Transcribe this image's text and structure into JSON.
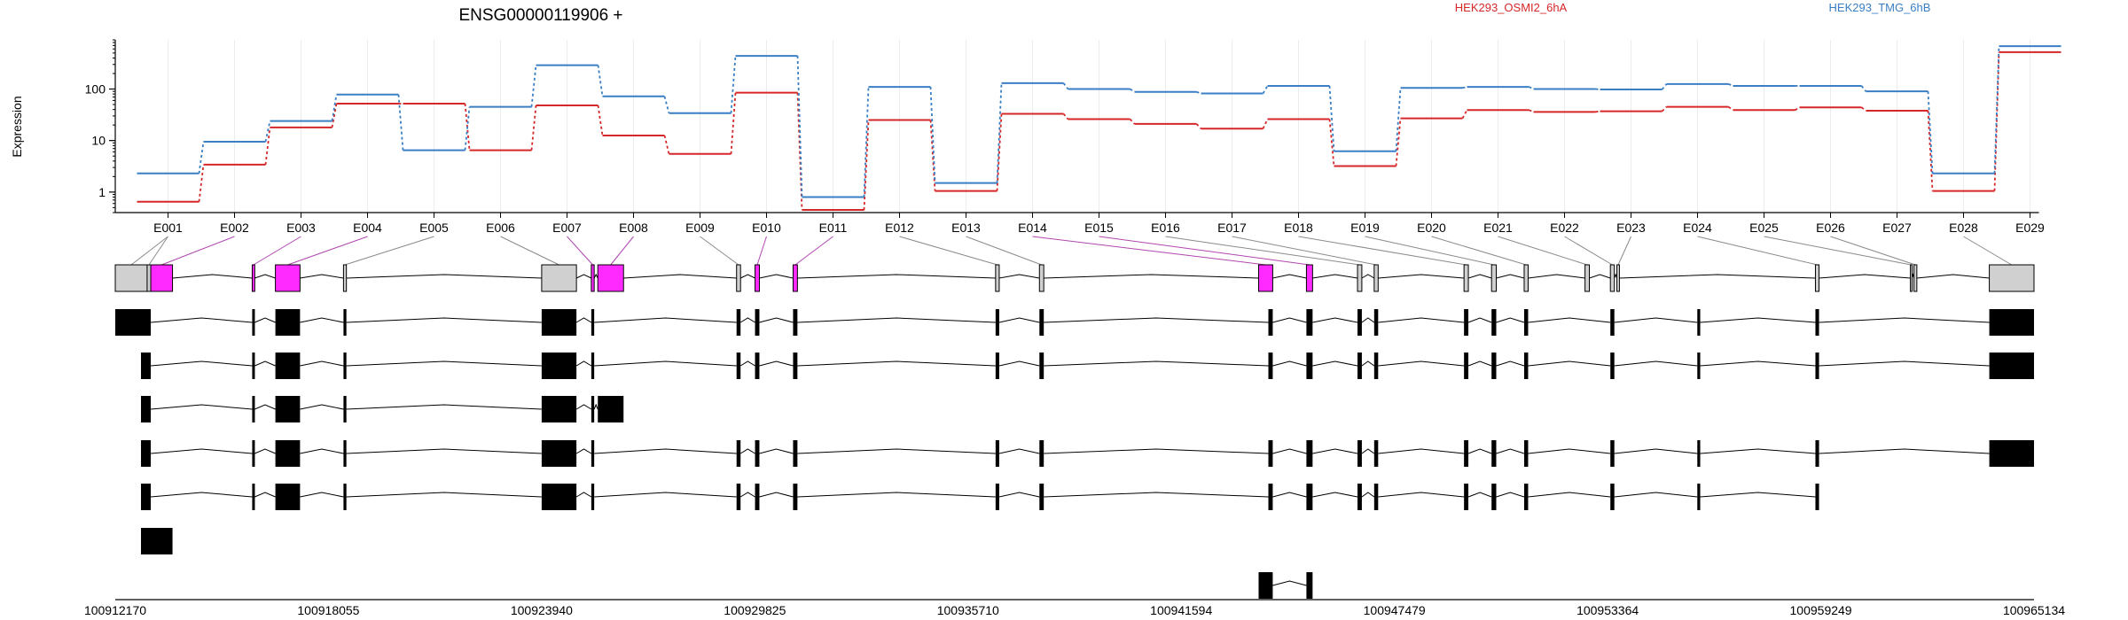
{
  "chart_data": {
    "type": "line",
    "title": "ENSG00000119906 +",
    "ylabel": "Expression",
    "y_scale": "log",
    "yticks": [
      1,
      10,
      100
    ],
    "ylim": [
      0.4,
      900
    ],
    "grid": "vertical, light",
    "legend_position": "top-right",
    "categories": [
      "E001",
      "E002",
      "E003",
      "E004",
      "E005",
      "E006",
      "E007",
      "E008",
      "E009",
      "E010",
      "E011",
      "E012",
      "E013",
      "E014",
      "E015",
      "E016",
      "E017",
      "E018",
      "E019",
      "E020",
      "E021",
      "E022",
      "E023",
      "E024",
      "E025",
      "E026",
      "E027",
      "E028",
      "E029"
    ],
    "series": [
      {
        "name": "HEK293_OSMI2_6hA",
        "color": "#d62728",
        "values": [
          0.65,
          3.4,
          18,
          52,
          52,
          6.5,
          48,
          12.5,
          5.5,
          85,
          0.45,
          25,
          1.05,
          33,
          26,
          21,
          17,
          26,
          3.2,
          27,
          39,
          36,
          37,
          45,
          39,
          44,
          38,
          1.05,
          520
        ]
      },
      {
        "name": "HEK293_TMG_6hB",
        "color": "#3a7fc4",
        "values": [
          2.3,
          9.5,
          24,
          78,
          6.5,
          45,
          290,
          72,
          34,
          440,
          0.8,
          110,
          1.5,
          130,
          100,
          88,
          82,
          115,
          6.2,
          105,
          110,
          100,
          98,
          125,
          115,
          115,
          90,
          2.3,
          680
        ]
      }
    ],
    "exon_highlight_color": "#ff2aff",
    "highlighted_exons": [
      "E002",
      "E003",
      "E004",
      "E007",
      "E008",
      "E010",
      "E011",
      "E014",
      "E015"
    ],
    "genomic_axis_ticks": [
      "100912170",
      "100918055",
      "100923940",
      "100929825",
      "100935710",
      "100941594",
      "100947479",
      "100953364",
      "100959249",
      "100965134"
    ],
    "genomic_range": [
      100912170,
      100965134
    ],
    "exons_genomic": [
      [
        100912170,
        100913050
      ],
      [
        100913050,
        100913150
      ],
      [
        100913150,
        100913750
      ],
      [
        100915950,
        100916020
      ],
      [
        100916590,
        100917270
      ],
      [
        100918470,
        100918550
      ],
      [
        100923940,
        100924900
      ],
      [
        100925310,
        100925390
      ],
      [
        100925490,
        100926200
      ],
      [
        100929320,
        100929430
      ],
      [
        100929830,
        100929950
      ],
      [
        100930880,
        100931000
      ],
      [
        100936470,
        100936570
      ],
      [
        100937680,
        100937800
      ],
      [
        100943730,
        100944120
      ],
      [
        100945050,
        100945220
      ],
      [
        100946460,
        100946580
      ],
      [
        100946920,
        100947030
      ],
      [
        100949400,
        100949520
      ],
      [
        100950160,
        100950290
      ],
      [
        100951060,
        100951170
      ],
      [
        100952740,
        100952860
      ],
      [
        100953440,
        100953550
      ],
      [
        100953620,
        100953690
      ],
      [
        100959100,
        100959200
      ],
      [
        100961720,
        100961760
      ],
      [
        100961820,
        100961900
      ],
      [
        100963900,
        100965134
      ]
    ],
    "exon_bin_index": [
      0,
      0,
      1,
      2,
      3,
      4,
      5,
      6,
      7,
      8,
      9,
      10,
      11,
      12,
      13,
      14,
      15,
      16,
      17,
      18,
      19,
      20,
      21,
      22,
      23,
      24,
      25,
      27
    ],
    "transcripts": [
      [
        [
          100912170,
          100913150
        ],
        [
          100915950,
          100916020
        ],
        [
          100916590,
          100917270
        ],
        [
          100918470,
          100918550
        ],
        [
          100923940,
          100924900
        ],
        [
          100925310,
          100925390
        ],
        [
          100929320,
          100929430
        ],
        [
          100929830,
          100929950
        ],
        [
          100930880,
          100931000
        ],
        [
          100936470,
          100936570
        ],
        [
          100937680,
          100937800
        ],
        [
          100944000,
          100944120
        ],
        [
          100945050,
          100945220
        ],
        [
          100946460,
          100946580
        ],
        [
          100946920,
          100947030
        ],
        [
          100949400,
          100949520
        ],
        [
          100950160,
          100950290
        ],
        [
          100951060,
          100951170
        ],
        [
          100953440,
          100953550
        ],
        [
          100955840,
          100955920
        ],
        [
          100959100,
          100959200
        ],
        [
          100963900,
          100965134
        ]
      ],
      [
        [
          100912880,
          100913150
        ],
        [
          100915950,
          100916020
        ],
        [
          100916590,
          100917270
        ],
        [
          100918470,
          100918550
        ],
        [
          100923940,
          100924900
        ],
        [
          100925310,
          100925390
        ],
        [
          100929320,
          100929430
        ],
        [
          100929830,
          100929950
        ],
        [
          100930880,
          100931000
        ],
        [
          100936470,
          100936570
        ],
        [
          100937680,
          100937800
        ],
        [
          100944000,
          100944120
        ],
        [
          100945050,
          100945220
        ],
        [
          100946460,
          100946580
        ],
        [
          100946920,
          100947030
        ],
        [
          100949400,
          100949520
        ],
        [
          100950160,
          100950290
        ],
        [
          100951060,
          100951170
        ],
        [
          100953440,
          100953550
        ],
        [
          100955840,
          100955920
        ],
        [
          100959100,
          100959200
        ],
        [
          100963900,
          100965134
        ]
      ],
      [
        [
          100912880,
          100913150
        ],
        [
          100915950,
          100916020
        ],
        [
          100916590,
          100917270
        ],
        [
          100918470,
          100918550
        ],
        [
          100923940,
          100924900
        ],
        [
          100925310,
          100925390
        ],
        [
          100925490,
          100926200
        ]
      ],
      [
        [
          100912880,
          100913150
        ],
        [
          100915950,
          100916020
        ],
        [
          100916590,
          100917270
        ],
        [
          100918470,
          100918550
        ],
        [
          100923940,
          100924900
        ],
        [
          100925310,
          100925390
        ],
        [
          100929320,
          100929430
        ],
        [
          100929830,
          100929950
        ],
        [
          100930880,
          100931000
        ],
        [
          100936470,
          100936570
        ],
        [
          100937680,
          100937800
        ],
        [
          100944000,
          100944120
        ],
        [
          100945050,
          100945220
        ],
        [
          100946460,
          100946580
        ],
        [
          100946920,
          100947030
        ],
        [
          100949400,
          100949520
        ],
        [
          100950160,
          100950290
        ],
        [
          100951060,
          100951170
        ],
        [
          100953440,
          100953550
        ],
        [
          100955840,
          100955920
        ],
        [
          100959100,
          100959200
        ],
        [
          100963900,
          100965134
        ]
      ],
      [
        [
          100912880,
          100913150
        ],
        [
          100915950,
          100916020
        ],
        [
          100916590,
          100917270
        ],
        [
          100918470,
          100918550
        ],
        [
          100923940,
          100924900
        ],
        [
          100925310,
          100925390
        ],
        [
          100929320,
          100929430
        ],
        [
          100929830,
          100929950
        ],
        [
          100930880,
          100931000
        ],
        [
          100936470,
          100936570
        ],
        [
          100937680,
          100937800
        ],
        [
          100944000,
          100944120
        ],
        [
          100945050,
          100945220
        ],
        [
          100946460,
          100946580
        ],
        [
          100946920,
          100947030
        ],
        [
          100949400,
          100949520
        ],
        [
          100950160,
          100950290
        ],
        [
          100951060,
          100951170
        ],
        [
          100953440,
          100953550
        ],
        [
          100955840,
          100955920
        ],
        [
          100959100,
          100959200
        ]
      ],
      [
        [
          100912880,
          100913750
        ]
      ],
      [
        [
          100943730,
          100944120
        ],
        [
          100945050,
          100945220
        ]
      ]
    ]
  }
}
